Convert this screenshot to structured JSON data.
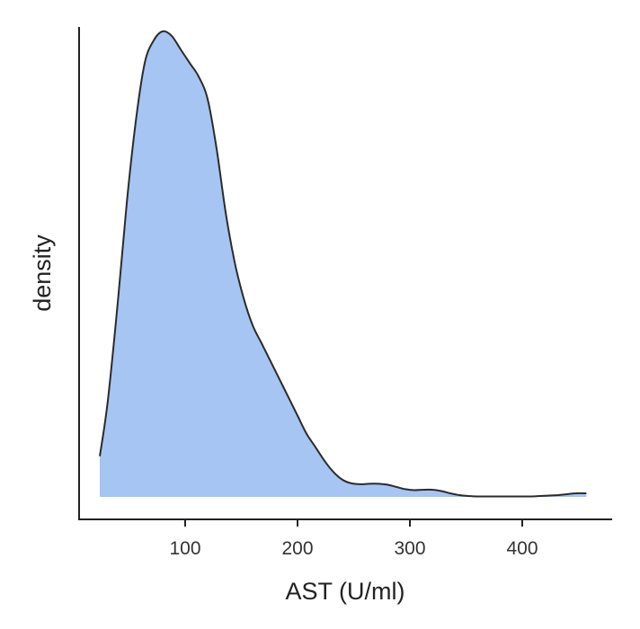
{
  "chart_data": {
    "type": "area",
    "title": "",
    "xlabel": "AST (U/ml)",
    "ylabel": "density",
    "xlim": [
      0,
      475
    ],
    "ylim": [
      0,
      1.07
    ],
    "x_ticks": [
      100,
      200,
      300,
      400
    ],
    "y_ticks": [],
    "grid": false,
    "legend": "none",
    "fill_color": "#a6c5f2",
    "line_color": "#2b2b2b",
    "series": [
      {
        "x": [
          24,
          31,
          40,
          48,
          56,
          64,
          72,
          80,
          88,
          96,
          104,
          112,
          120,
          128,
          136,
          144,
          152,
          160,
          168,
          176,
          184,
          192,
          200,
          208,
          216,
          224,
          232,
          240,
          248,
          256,
          264,
          272,
          280,
          288,
          296,
          304,
          312,
          320,
          328,
          336,
          344,
          352,
          360,
          368,
          376,
          384,
          392,
          400,
          408,
          416,
          424,
          432,
          440,
          448,
          457
        ],
        "y": [
          0.09,
          0.21,
          0.43,
          0.65,
          0.83,
          0.96,
          1.01,
          1.03,
          1.02,
          0.99,
          0.96,
          0.93,
          0.88,
          0.77,
          0.63,
          0.52,
          0.44,
          0.38,
          0.34,
          0.3,
          0.26,
          0.22,
          0.18,
          0.14,
          0.11,
          0.08,
          0.055,
          0.038,
          0.03,
          0.028,
          0.029,
          0.029,
          0.027,
          0.022,
          0.017,
          0.015,
          0.016,
          0.016,
          0.013,
          0.008,
          0.004,
          0.002,
          0.001,
          0.001,
          0.001,
          0.001,
          0.001,
          0.001,
          0.001,
          0.002,
          0.003,
          0.004,
          0.006,
          0.008,
          0.008
        ]
      }
    ]
  }
}
